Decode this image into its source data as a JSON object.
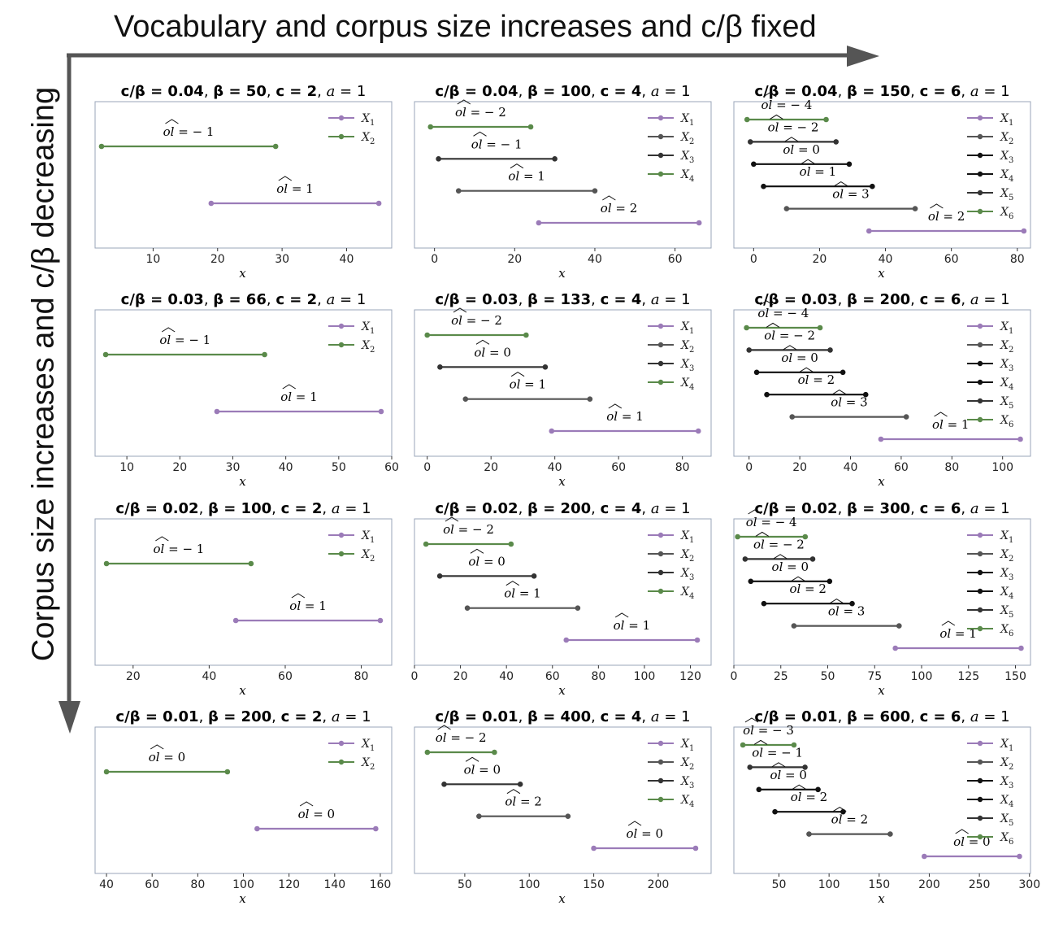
{
  "headers": {
    "top": "Vocabulary and corpus size increases and c/β fixed",
    "left": "Corpus size increases and c/β decreasing"
  },
  "colors": {
    "purple": "#9b7bb8",
    "gray": "#555555",
    "black": "#111111",
    "darkgray": "#333333",
    "green": "#5a8a4a",
    "frame": "#9aa5b8",
    "arrow": "#555555"
  },
  "chart_data": [
    {
      "type": "line",
      "title": {
        "cb": "0.04",
        "beta": "50",
        "c": "2",
        "a": "1"
      },
      "xlabel": "x",
      "xlim": [
        1,
        47
      ],
      "ticks": [
        10,
        20,
        30,
        40
      ],
      "intervals": [
        {
          "var": "X_2",
          "start": 2,
          "end": 29,
          "ol": "− 1"
        },
        {
          "var": "X_1",
          "start": 19,
          "end": 45,
          "ol": "1"
        }
      ],
      "legend": [
        "X_1",
        "X_2"
      ]
    },
    {
      "type": "line",
      "title": {
        "cb": "0.04",
        "beta": "100",
        "c": "4",
        "a": "1"
      },
      "xlabel": "x",
      "xlim": [
        -5,
        69
      ],
      "ticks": [
        0,
        20,
        40,
        60
      ],
      "intervals": [
        {
          "var": "X_4",
          "start": -1,
          "end": 24,
          "ol": "− 2"
        },
        {
          "var": "X_3",
          "start": 1,
          "end": 30,
          "ol": "− 1"
        },
        {
          "var": "X_2",
          "start": 6,
          "end": 40,
          "ol": "1"
        },
        {
          "var": "X_1",
          "start": 26,
          "end": 66,
          "ol": "2"
        }
      ],
      "legend": [
        "X_1",
        "X_2",
        "X_3",
        "X_4"
      ]
    },
    {
      "type": "line",
      "title": {
        "cb": "0.04",
        "beta": "150",
        "c": "6",
        "a": "1"
      },
      "xlabel": "x",
      "xlim": [
        -6,
        84
      ],
      "ticks": [
        0,
        20,
        40,
        60,
        80
      ],
      "intervals": [
        {
          "var": "X_6",
          "start": -2,
          "end": 22,
          "ol": "− 4"
        },
        {
          "var": "X_5",
          "start": -1,
          "end": 25,
          "ol": "− 2"
        },
        {
          "var": "X_4",
          "start": 0,
          "end": 29,
          "ol": "0"
        },
        {
          "var": "X_3",
          "start": 3,
          "end": 36,
          "ol": "1"
        },
        {
          "var": "X_2",
          "start": 10,
          "end": 49,
          "ol": "3"
        },
        {
          "var": "X_1",
          "start": 35,
          "end": 82,
          "ol": "2"
        }
      ],
      "legend": [
        "X_1",
        "X_2",
        "X_3",
        "X_4",
        "X_5",
        "X_6"
      ]
    },
    {
      "type": "line",
      "title": {
        "cb": "0.03",
        "beta": "66",
        "c": "2",
        "a": "1"
      },
      "xlabel": "x",
      "xlim": [
        4,
        60
      ],
      "ticks": [
        10,
        20,
        30,
        40,
        50,
        60
      ],
      "intervals": [
        {
          "var": "X_2",
          "start": 6,
          "end": 36,
          "ol": "− 1"
        },
        {
          "var": "X_1",
          "start": 27,
          "end": 58,
          "ol": "1"
        }
      ],
      "legend": [
        "X_1",
        "X_2"
      ]
    },
    {
      "type": "line",
      "title": {
        "cb": "0.03",
        "beta": "133",
        "c": "4",
        "a": "1"
      },
      "xlabel": "x",
      "xlim": [
        -4,
        89
      ],
      "ticks": [
        0,
        20,
        40,
        60,
        80
      ],
      "intervals": [
        {
          "var": "X_4",
          "start": 0,
          "end": 31,
          "ol": "− 2"
        },
        {
          "var": "X_3",
          "start": 4,
          "end": 37,
          "ol": "0"
        },
        {
          "var": "X_2",
          "start": 12,
          "end": 51,
          "ol": "1"
        },
        {
          "var": "X_1",
          "start": 39,
          "end": 85,
          "ol": "1"
        }
      ],
      "legend": [
        "X_1",
        "X_2",
        "X_3",
        "X_4"
      ]
    },
    {
      "type": "line",
      "title": {
        "cb": "0.03",
        "beta": "200",
        "c": "6",
        "a": "1"
      },
      "xlabel": "x",
      "xlim": [
        -6,
        111
      ],
      "ticks": [
        0,
        20,
        40,
        60,
        80,
        100
      ],
      "intervals": [
        {
          "var": "X_6",
          "start": -1,
          "end": 28,
          "ol": "− 4"
        },
        {
          "var": "X_5",
          "start": 0,
          "end": 32,
          "ol": "− 2"
        },
        {
          "var": "X_4",
          "start": 3,
          "end": 37,
          "ol": "0"
        },
        {
          "var": "X_3",
          "start": 7,
          "end": 46,
          "ol": "2"
        },
        {
          "var": "X_2",
          "start": 17,
          "end": 62,
          "ol": "3"
        },
        {
          "var": "X_1",
          "start": 52,
          "end": 107,
          "ol": "1"
        }
      ],
      "legend": [
        "X_1",
        "X_2",
        "X_3",
        "X_4",
        "X_5",
        "X_6"
      ]
    },
    {
      "type": "line",
      "title": {
        "cb": "0.02",
        "beta": "100",
        "c": "2",
        "a": "1"
      },
      "xlabel": "x",
      "xlim": [
        10,
        88
      ],
      "ticks": [
        20,
        40,
        60,
        80
      ],
      "intervals": [
        {
          "var": "X_2",
          "start": 13,
          "end": 51,
          "ol": "− 1"
        },
        {
          "var": "X_1",
          "start": 47,
          "end": 85,
          "ol": "1"
        }
      ],
      "legend": [
        "X_1",
        "X_2"
      ]
    },
    {
      "type": "line",
      "title": {
        "cb": "0.02",
        "beta": "200",
        "c": "4",
        "a": "1"
      },
      "xlabel": "x",
      "xlim": [
        0,
        129
      ],
      "ticks": [
        0,
        20,
        40,
        60,
        80,
        100,
        120
      ],
      "intervals": [
        {
          "var": "X_4",
          "start": 5,
          "end": 42,
          "ol": "− 2"
        },
        {
          "var": "X_3",
          "start": 11,
          "end": 52,
          "ol": "0"
        },
        {
          "var": "X_2",
          "start": 23,
          "end": 71,
          "ol": "1"
        },
        {
          "var": "X_1",
          "start": 66,
          "end": 123,
          "ol": "1"
        }
      ],
      "legend": [
        "X_1",
        "X_2",
        "X_3",
        "X_4"
      ]
    },
    {
      "type": "line",
      "title": {
        "cb": "0.02",
        "beta": "300",
        "c": "6",
        "a": "1"
      },
      "xlabel": "x",
      "xlim": [
        0,
        158
      ],
      "ticks": [
        0,
        25,
        50,
        75,
        100,
        125,
        150
      ],
      "intervals": [
        {
          "var": "X_6",
          "start": 2,
          "end": 38,
          "ol": "− 4"
        },
        {
          "var": "X_5",
          "start": 6,
          "end": 42,
          "ol": "− 2"
        },
        {
          "var": "X_4",
          "start": 9,
          "end": 51,
          "ol": "0"
        },
        {
          "var": "X_3",
          "start": 16,
          "end": 63,
          "ol": "2"
        },
        {
          "var": "X_2",
          "start": 32,
          "end": 88,
          "ol": "3"
        },
        {
          "var": "X_1",
          "start": 86,
          "end": 153,
          "ol": "1"
        }
      ],
      "legend": [
        "X_1",
        "X_2",
        "X_3",
        "X_4",
        "X_5",
        "X_6"
      ]
    },
    {
      "type": "line",
      "title": {
        "cb": "0.01",
        "beta": "200",
        "c": "2",
        "a": "1"
      },
      "xlabel": "x",
      "xlim": [
        35,
        165
      ],
      "ticks": [
        40,
        60,
        80,
        100,
        120,
        140,
        160
      ],
      "intervals": [
        {
          "var": "X_2",
          "start": 40,
          "end": 93,
          "ol": "0"
        },
        {
          "var": "X_1",
          "start": 106,
          "end": 158,
          "ol": "0"
        }
      ],
      "legend": [
        "X_1",
        "X_2"
      ]
    },
    {
      "type": "line",
      "title": {
        "cb": "0.01",
        "beta": "400",
        "c": "4",
        "a": "1"
      },
      "xlabel": "x",
      "xlim": [
        11,
        241
      ],
      "ticks": [
        50,
        100,
        150,
        200
      ],
      "intervals": [
        {
          "var": "X_4",
          "start": 21,
          "end": 73,
          "ol": "− 2"
        },
        {
          "var": "X_3",
          "start": 34,
          "end": 93,
          "ol": "0"
        },
        {
          "var": "X_2",
          "start": 61,
          "end": 130,
          "ol": "2"
        },
        {
          "var": "X_1",
          "start": 150,
          "end": 229,
          "ol": "0"
        }
      ],
      "legend": [
        "X_1",
        "X_2",
        "X_3",
        "X_4"
      ]
    },
    {
      "type": "line",
      "title": {
        "cb": "0.01",
        "beta": "600",
        "c": "6",
        "a": "1"
      },
      "xlabel": "x",
      "xlim": [
        5,
        301
      ],
      "ticks": [
        50,
        100,
        150,
        200,
        250,
        300
      ],
      "intervals": [
        {
          "var": "X_6",
          "start": 14,
          "end": 65,
          "ol": "− 3"
        },
        {
          "var": "X_5",
          "start": 21,
          "end": 76,
          "ol": "− 1"
        },
        {
          "var": "X_4",
          "start": 30,
          "end": 89,
          "ol": "0"
        },
        {
          "var": "X_3",
          "start": 46,
          "end": 114,
          "ol": "2"
        },
        {
          "var": "X_2",
          "start": 80,
          "end": 161,
          "ol": "2"
        },
        {
          "var": "X_1",
          "start": 195,
          "end": 290,
          "ol": "0"
        }
      ],
      "legend": [
        "X_1",
        "X_2",
        "X_3",
        "X_4",
        "X_5",
        "X_6"
      ]
    }
  ]
}
